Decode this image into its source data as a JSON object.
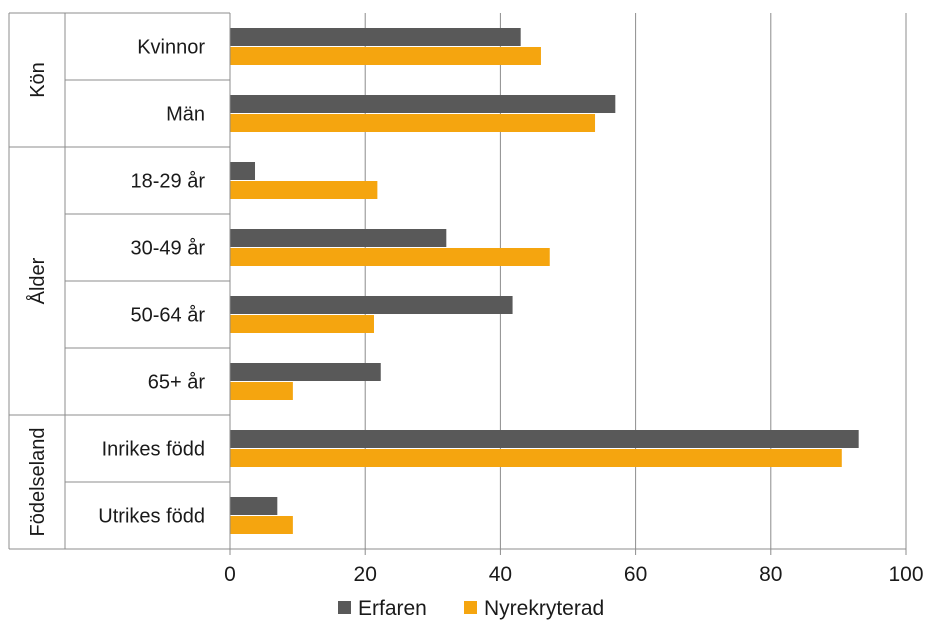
{
  "chart_data": {
    "type": "bar",
    "orientation": "horizontal",
    "groups": [
      {
        "label": "Kön",
        "categories": [
          "Kvinnor",
          "Män"
        ]
      },
      {
        "label": "Ålder",
        "categories": [
          "18-29 år",
          "30-49 år",
          "50-64 år",
          "65+ år"
        ]
      },
      {
        "label": "Födelseland",
        "categories": [
          "Inrikes född",
          "Utrikes född"
        ]
      }
    ],
    "categories": [
      "Kvinnor",
      "Män",
      "18-29 år",
      "30-49 år",
      "50-64 år",
      "65+ år",
      "Inrikes född",
      "Utrikes född"
    ],
    "series": [
      {
        "name": "Erfaren",
        "color": "#595959",
        "values": [
          43,
          57,
          3.7,
          32,
          41.8,
          22.3,
          93,
          7
        ]
      },
      {
        "name": "Nyrekryterad",
        "color": "#f5a50f",
        "values": [
          46,
          54,
          21.8,
          47.3,
          21.3,
          9.3,
          90.5,
          9.3
        ]
      }
    ],
    "xlim": [
      0,
      100
    ],
    "xticks": [
      0,
      20,
      40,
      60,
      80,
      100
    ],
    "grid": "vertical",
    "legend_position": "bottom",
    "xlabel": "",
    "ylabel": "",
    "title": ""
  }
}
